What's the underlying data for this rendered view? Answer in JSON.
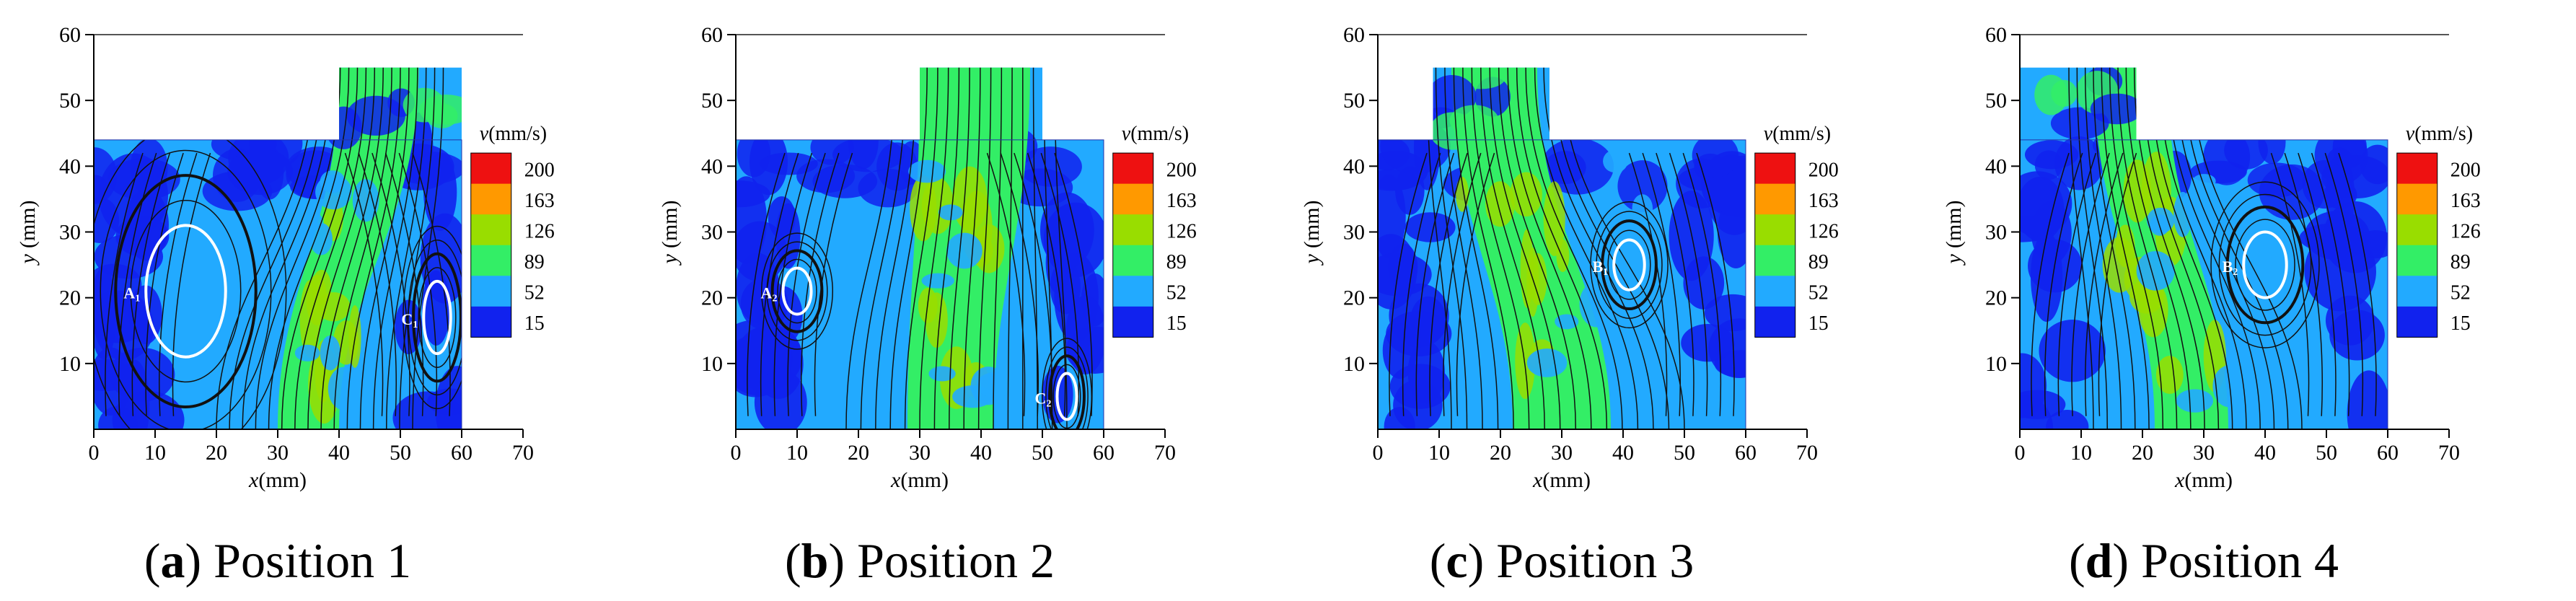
{
  "chart_data": [
    {
      "type": "heatmap",
      "panel_letter": "a",
      "panel_title": "Position 1",
      "xlabel_var": "x",
      "xlabel_unit": "(mm)",
      "ylabel_var": "y",
      "ylabel_unit": "(mm)",
      "xlim": [
        0,
        70
      ],
      "ylim": [
        0,
        60
      ],
      "x_ticks": [
        0,
        10,
        20,
        30,
        40,
        50,
        60,
        70
      ],
      "y_ticks": [
        10,
        20,
        30,
        40,
        50,
        60
      ],
      "domain": {
        "x_range": [
          0,
          60
        ],
        "y_floor": 0,
        "main_top": 44,
        "outlet_x": [
          40,
          60
        ],
        "outlet_top": 55
      },
      "colorbar": {
        "title_var": "v",
        "title_unit": "(mm/s)",
        "levels": [
          200,
          163,
          126,
          89,
          52,
          15
        ],
        "colors": [
          "#ee1111",
          "#ff9900",
          "#99dd00",
          "#33ee66",
          "#22aaff",
          "#1122ee"
        ]
      },
      "vortices": [
        {
          "label": "A",
          "index": "1",
          "cx": 15,
          "cy": 21,
          "rx": 6.5,
          "ry": 10
        },
        {
          "label": "C",
          "index": "1",
          "cx": 56,
          "cy": 17,
          "rx": 2.2,
          "ry": 5.5
        }
      ],
      "jets": [
        {
          "x_bottom_min": 30,
          "x_bottom_max": 40,
          "x_top_min": 40,
          "x_top_max": 53
        }
      ]
    },
    {
      "type": "heatmap",
      "panel_letter": "b",
      "panel_title": "Position 2",
      "xlabel_var": "x",
      "xlabel_unit": "(mm)",
      "ylabel_var": "y",
      "ylabel_unit": "(mm)",
      "xlim": [
        0,
        70
      ],
      "ylim": [
        0,
        60
      ],
      "x_ticks": [
        0,
        10,
        20,
        30,
        40,
        50,
        60,
        70
      ],
      "y_ticks": [
        10,
        20,
        30,
        40,
        50,
        60
      ],
      "domain": {
        "x_range": [
          0,
          60
        ],
        "y_floor": 0,
        "main_top": 44,
        "outlet_x": [
          30,
          50
        ],
        "outlet_top": 55
      },
      "colorbar": {
        "title_var": "v",
        "title_unit": "(mm/s)",
        "levels": [
          200,
          163,
          126,
          89,
          52,
          15
        ],
        "colors": [
          "#ee1111",
          "#ff9900",
          "#99dd00",
          "#33ee66",
          "#22aaff",
          "#1122ee"
        ]
      },
      "vortices": [
        {
          "label": "A",
          "index": "2",
          "cx": 10,
          "cy": 21,
          "rx": 2.3,
          "ry": 3.5
        },
        {
          "label": "C",
          "index": "2",
          "cx": 54,
          "cy": 5,
          "rx": 1.6,
          "ry": 3.5
        }
      ],
      "jets": [
        {
          "x_bottom_min": 28,
          "x_bottom_max": 42,
          "x_top_min": 30,
          "x_top_max": 48
        }
      ]
    },
    {
      "type": "heatmap",
      "panel_letter": "c",
      "panel_title": "Position 3",
      "xlabel_var": "x",
      "xlabel_unit": "(mm)",
      "ylabel_var": "y",
      "ylabel_unit": "(mm)",
      "xlim": [
        0,
        70
      ],
      "ylim": [
        0,
        60
      ],
      "x_ticks": [
        0,
        10,
        20,
        30,
        40,
        50,
        60,
        70
      ],
      "y_ticks": [
        10,
        20,
        30,
        40,
        50,
        60
      ],
      "domain": {
        "x_range": [
          0,
          60
        ],
        "y_floor": 0,
        "main_top": 44,
        "outlet_x": [
          9,
          28
        ],
        "outlet_top": 55
      },
      "colorbar": {
        "title_var": "v",
        "title_unit": "(mm/s)",
        "levels": [
          200,
          163,
          126,
          89,
          52,
          15
        ],
        "colors": [
          "#ee1111",
          "#ff9900",
          "#99dd00",
          "#33ee66",
          "#22aaff",
          "#1122ee"
        ]
      },
      "vortices": [
        {
          "label": "B",
          "index": "1",
          "cx": 41,
          "cy": 25,
          "rx": 2.5,
          "ry": 3.8
        }
      ],
      "jets": [
        {
          "x_bottom_min": 22,
          "x_bottom_max": 38,
          "x_top_min": 12,
          "x_top_max": 26
        }
      ]
    },
    {
      "type": "heatmap",
      "panel_letter": "d",
      "panel_title": "Position 4",
      "xlabel_var": "x",
      "xlabel_unit": "(mm)",
      "ylabel_var": "y",
      "ylabel_unit": "(mm)",
      "xlim": [
        0,
        70
      ],
      "ylim": [
        0,
        60
      ],
      "x_ticks": [
        0,
        10,
        20,
        30,
        40,
        50,
        60,
        70
      ],
      "y_ticks": [
        10,
        20,
        30,
        40,
        50,
        60
      ],
      "domain": {
        "x_range": [
          0,
          60
        ],
        "y_floor": 0,
        "main_top": 44,
        "outlet_x": [
          0,
          19
        ],
        "outlet_top": 55
      },
      "colorbar": {
        "title_var": "v",
        "title_unit": "(mm/s)",
        "levels": [
          200,
          163,
          126,
          89,
          52,
          15
        ],
        "colors": [
          "#ee1111",
          "#ff9900",
          "#99dd00",
          "#33ee66",
          "#22aaff",
          "#1122ee"
        ]
      },
      "vortices": [
        {
          "label": "B",
          "index": "2",
          "cx": 40,
          "cy": 25,
          "rx": 3.5,
          "ry": 5
        }
      ],
      "jets": [
        {
          "x_bottom_min": 22,
          "x_bottom_max": 34,
          "x_top_min": 12,
          "x_top_max": 24
        }
      ]
    }
  ]
}
